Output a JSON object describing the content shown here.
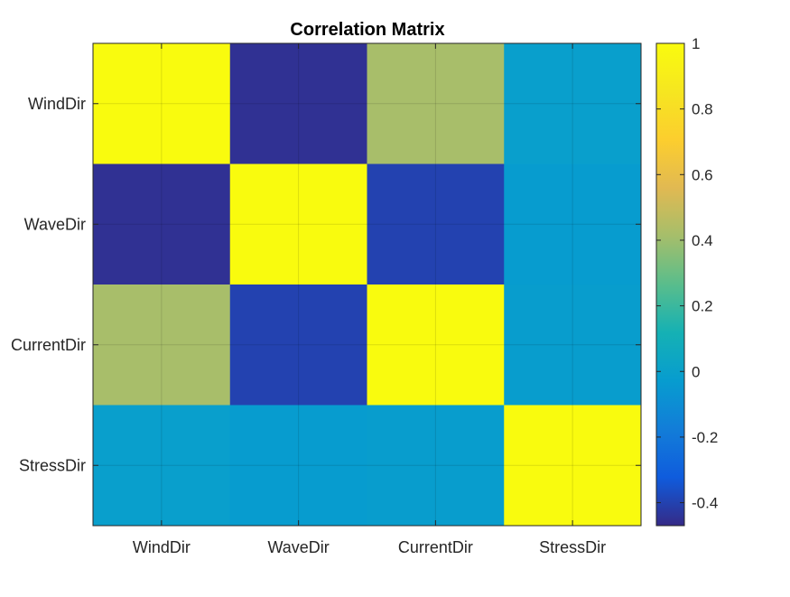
{
  "chart_data": {
    "type": "heatmap",
    "title": "Correlation Matrix",
    "xlabel": "",
    "ylabel": "",
    "x_categories": [
      "WindDir",
      "WaveDir",
      "CurrentDir",
      "StressDir"
    ],
    "y_categories": [
      "WindDir",
      "WaveDir",
      "CurrentDir",
      "StressDir"
    ],
    "values": [
      [
        1.0,
        -0.45,
        0.42,
        -0.01
      ],
      [
        -0.45,
        1.0,
        -0.4,
        -0.03
      ],
      [
        0.42,
        -0.4,
        1.0,
        -0.02
      ],
      [
        -0.01,
        -0.03,
        -0.02,
        1.0
      ]
    ],
    "colorbar": {
      "range": [
        -0.47,
        1.0
      ],
      "ticks": [
        -0.4,
        -0.2,
        0,
        0.2,
        0.4,
        0.6,
        0.8,
        1
      ],
      "tick_labels": [
        "-0.4",
        "-0.2",
        "0",
        "0.2",
        "0.4",
        "0.6",
        "0.8",
        "1"
      ],
      "colormap": "parula",
      "location": "right"
    },
    "grid": true
  }
}
